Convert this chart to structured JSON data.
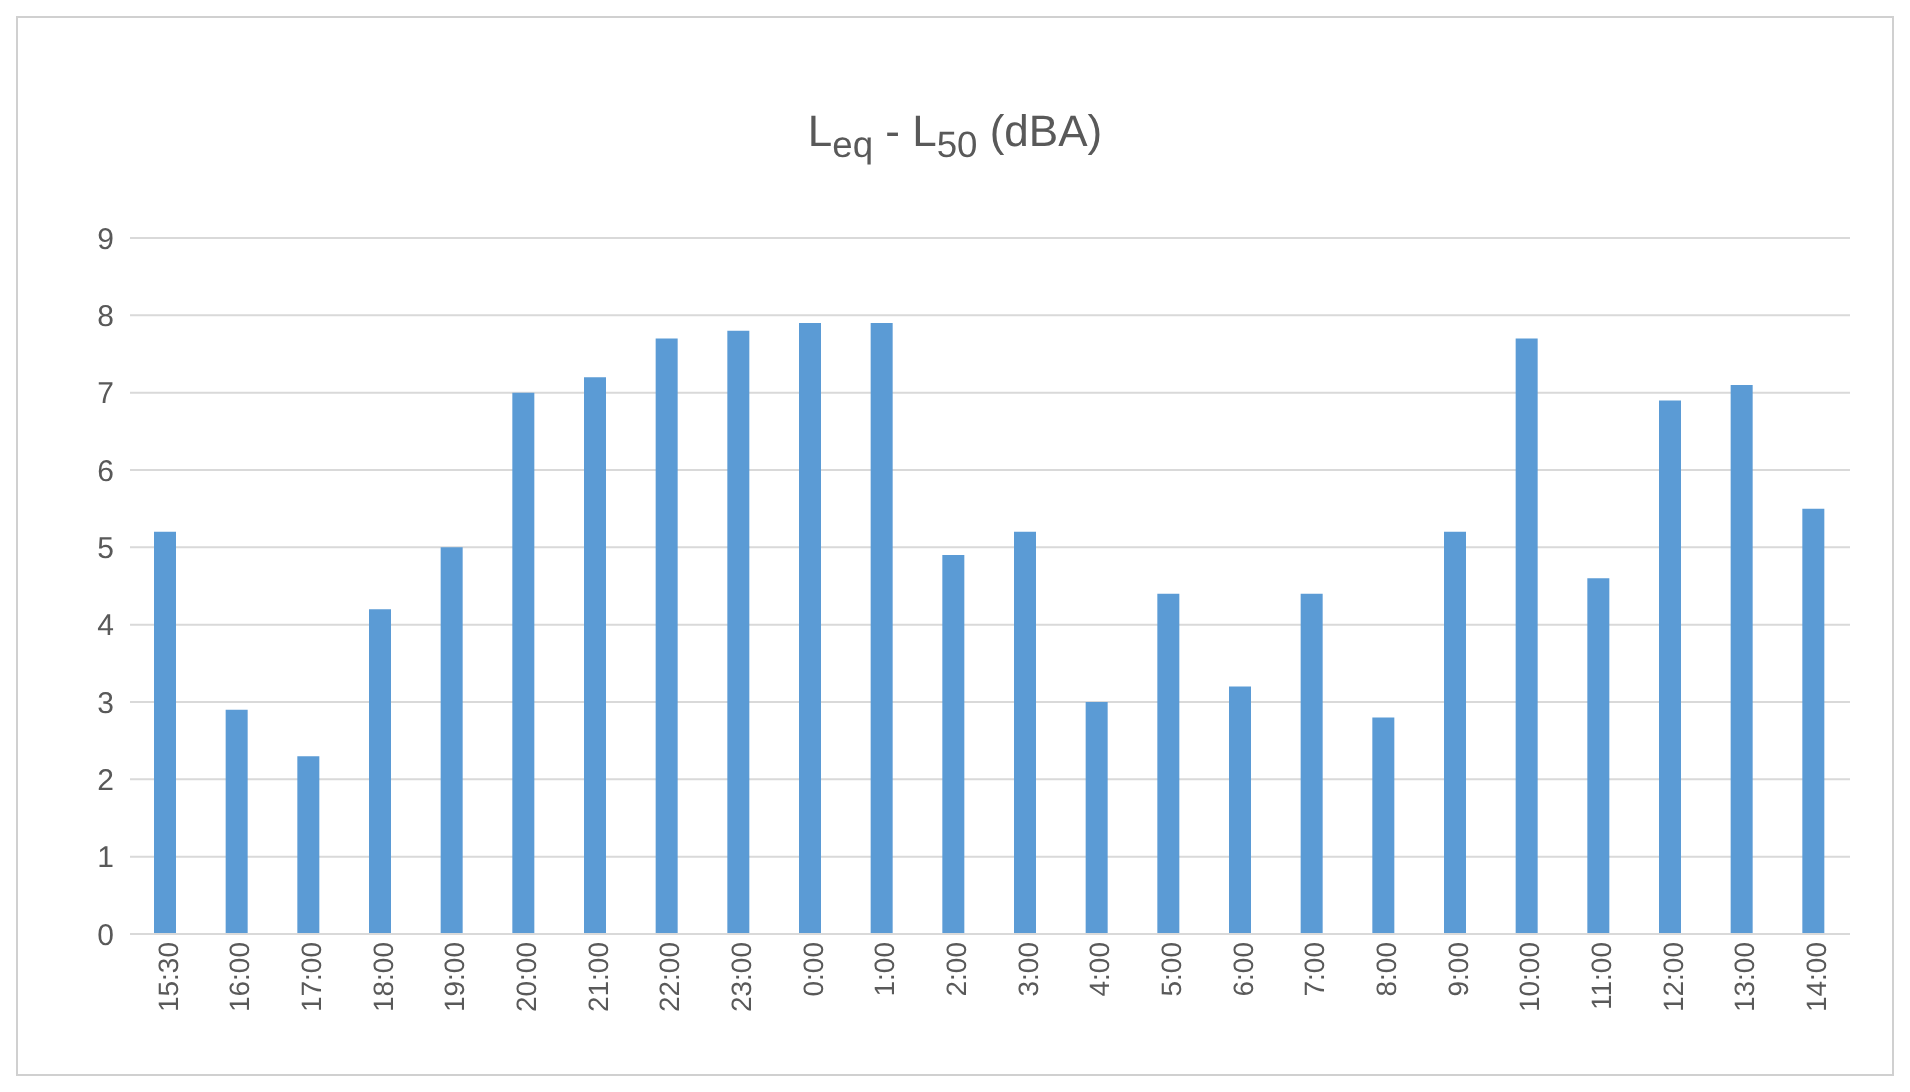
{
  "chart_data": {
    "type": "bar",
    "title": "L$_{eq}$ - L$_{50}$  (dBA)",
    "categories": [
      "15:30",
      "16:00",
      "17:00",
      "18:00",
      "19:00",
      "20:00",
      "21:00",
      "22:00",
      "23:00",
      "0:00",
      "1:00",
      "2:00",
      "3:00",
      "4:00",
      "5:00",
      "6:00",
      "7:00",
      "8:00",
      "9:00",
      "10:00",
      "11:00",
      "12:00",
      "13:00",
      "14:00"
    ],
    "values": [
      5.2,
      2.9,
      2.3,
      4.2,
      5.0,
      7.0,
      7.2,
      7.7,
      7.8,
      7.9,
      7.9,
      4.9,
      5.2,
      3.0,
      4.4,
      3.2,
      4.4,
      2.8,
      5.2,
      7.7,
      4.6,
      6.9,
      7.1,
      5.5
    ],
    "color": "#5b9bd5",
    "ylim": [
      0,
      9
    ],
    "yticks": [
      0,
      1,
      2,
      3,
      4,
      5,
      6,
      7,
      8,
      9
    ],
    "grid": "y"
  }
}
